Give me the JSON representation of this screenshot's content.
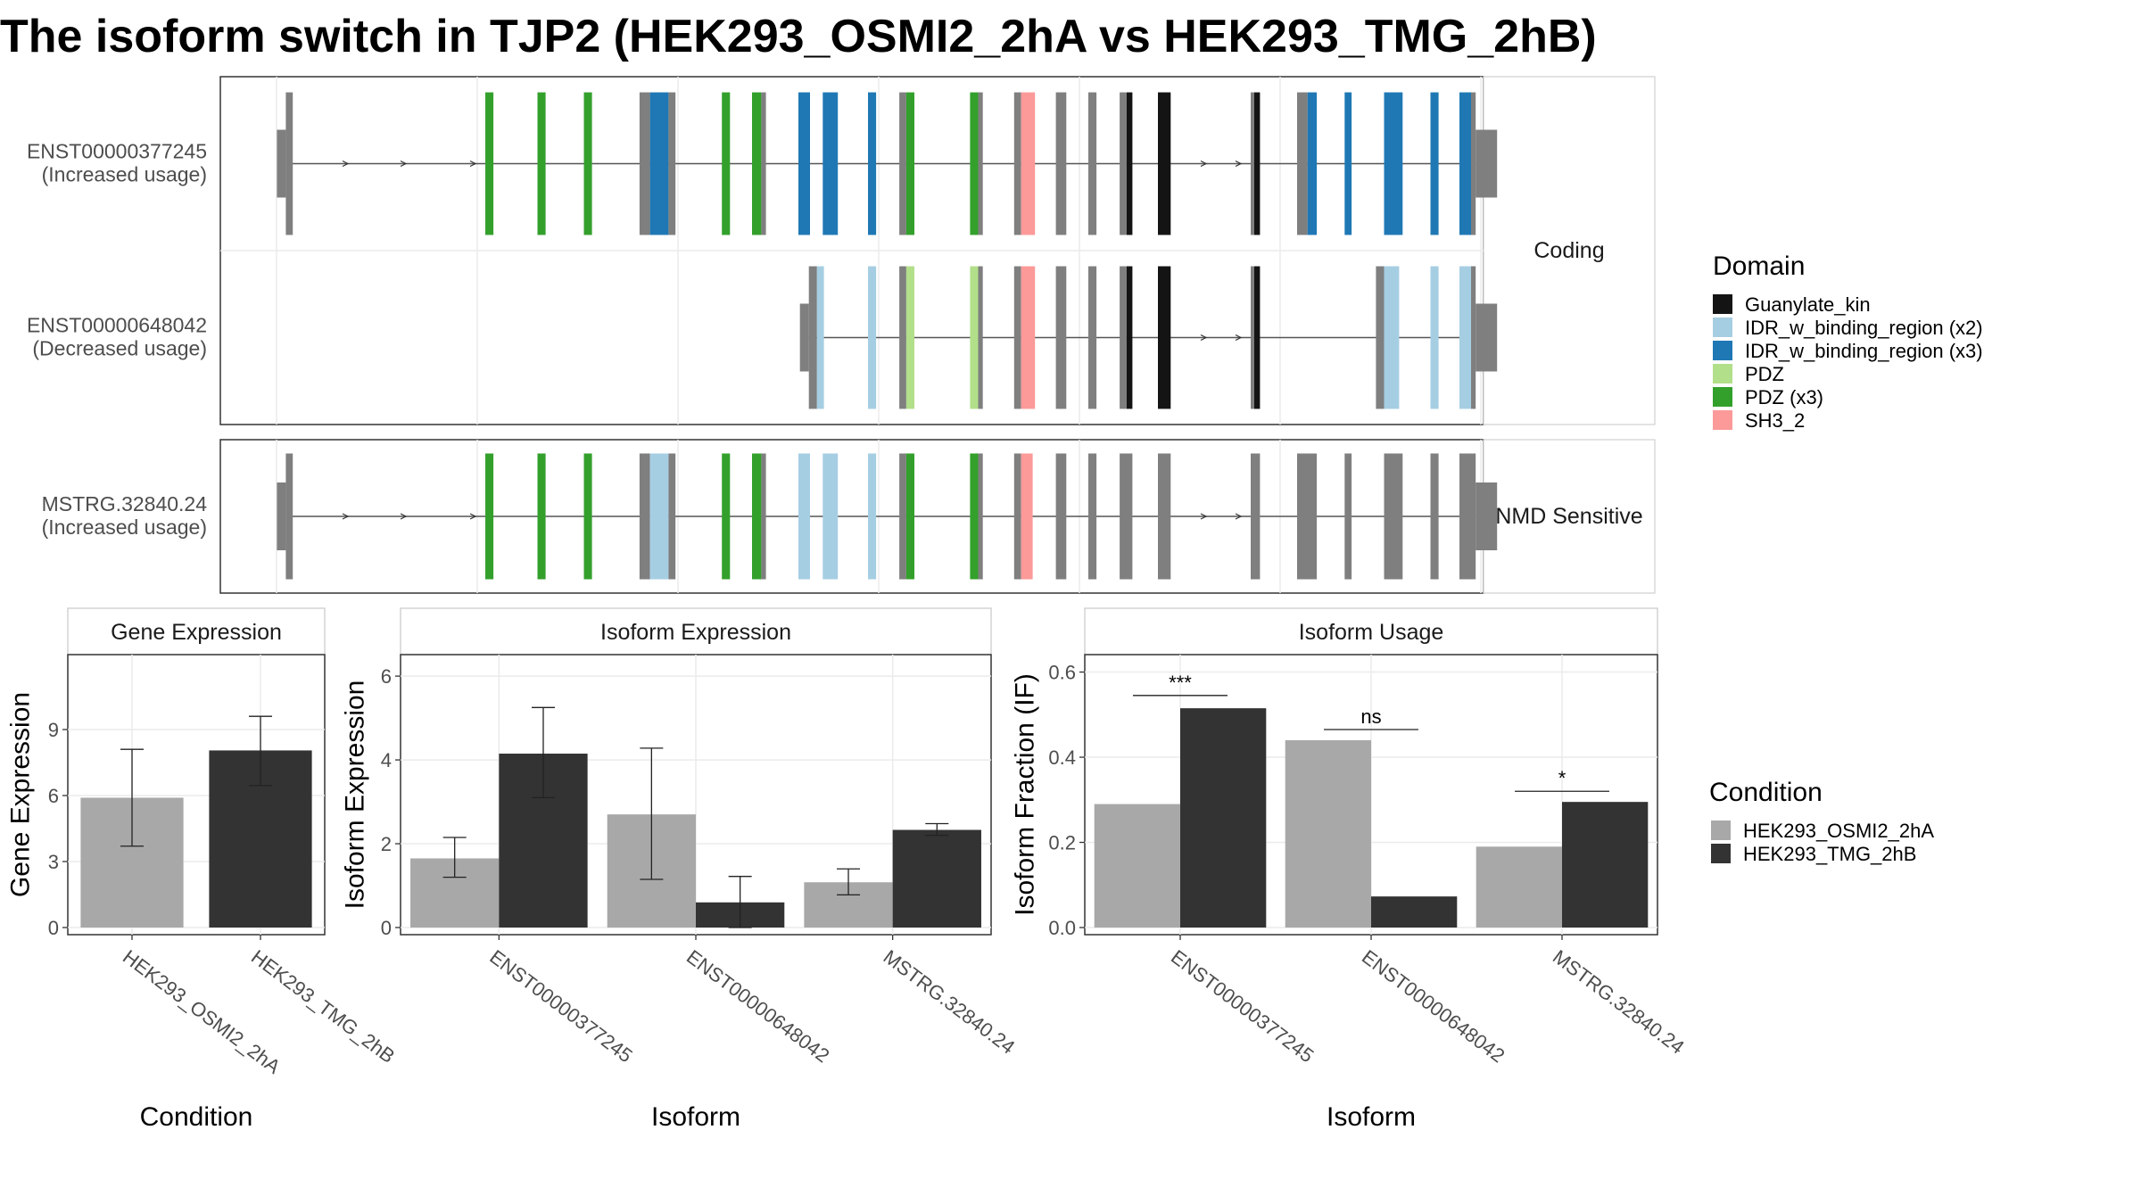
{
  "title": "The isoform switch in TJP2 (HEK293_OSMI2_2hA vs HEK293_TMG_2hB)",
  "colors": {
    "Guanylate_kin": "#141414",
    "IDR_w_binding_region (x2)": "#a6cee3",
    "IDR_w_binding_region (x3)": "#1f78b4",
    "PDZ": "#b2df8a",
    "PDZ (x3)": "#33a02c",
    "SH3_2": "#fb9a99",
    "none": "#7f7f7f",
    "cond_A": "#a8a8a8",
    "cond_B": "#333333"
  },
  "structure": {
    "panels": [
      {
        "strip": "Coding",
        "isoforms": [
          {
            "id": "ENST00000377245",
            "usage": "(Increased usage)",
            "utr_start": 0.0,
            "utr_end": 1.0,
            "exons": [
              [
                0.008,
                0.014,
                "none"
              ],
              [
                0.18,
                0.187,
                "PDZ (x3)"
              ],
              [
                0.225,
                0.232,
                "PDZ (x3)"
              ],
              [
                0.265,
                0.272,
                "PDZ (x3)"
              ],
              [
                0.313,
                0.322,
                "none"
              ],
              [
                0.322,
                0.338,
                "IDR_w_binding_region (x3)"
              ],
              [
                0.338,
                0.344,
                "none"
              ],
              [
                0.384,
                0.391,
                "PDZ (x3)"
              ],
              [
                0.41,
                0.418,
                "PDZ (x3)"
              ],
              [
                0.418,
                0.422,
                "none"
              ],
              [
                0.45,
                0.46,
                "IDR_w_binding_region (x3)"
              ],
              [
                0.471,
                0.484,
                "IDR_w_binding_region (x3)"
              ],
              [
                0.51,
                0.517,
                "IDR_w_binding_region (x3)"
              ],
              [
                0.537,
                0.543,
                "none"
              ],
              [
                0.543,
                0.55,
                "PDZ (x3)"
              ],
              [
                0.598,
                0.605,
                "PDZ (x3)"
              ],
              [
                0.605,
                0.609,
                "none"
              ],
              [
                0.636,
                0.642,
                "none"
              ],
              [
                0.642,
                0.654,
                "SH3_2"
              ],
              [
                0.672,
                0.681,
                "none"
              ],
              [
                0.7,
                0.707,
                "none"
              ],
              [
                0.727,
                0.733,
                "none"
              ],
              [
                0.733,
                0.738,
                "Guanylate_kin"
              ],
              [
                0.76,
                0.771,
                "Guanylate_kin"
              ],
              [
                0.84,
                0.843,
                "none"
              ],
              [
                0.843,
                0.848,
                "Guanylate_kin"
              ],
              [
                0.88,
                0.889,
                "none"
              ],
              [
                0.889,
                0.897,
                "IDR_w_binding_region (x3)"
              ],
              [
                0.921,
                0.927,
                "IDR_w_binding_region (x3)"
              ],
              [
                0.955,
                0.971,
                "IDR_w_binding_region (x3)"
              ],
              [
                0.995,
                1.002,
                "IDR_w_binding_region (x3)"
              ],
              [
                1.02,
                1.03,
                "IDR_w_binding_region (x3)"
              ],
              [
                1.03,
                1.034,
                "none"
              ]
            ]
          },
          {
            "id": "ENST00000648042",
            "usage": "(Decreased usage)",
            "utr_start": 0.44,
            "utr_end": 1.0,
            "exons": [
              [
                0.459,
                0.466,
                "none"
              ],
              [
                0.466,
                0.472,
                "IDR_w_binding_region (x2)"
              ],
              [
                0.51,
                0.517,
                "IDR_w_binding_region (x2)"
              ],
              [
                0.537,
                0.543,
                "none"
              ],
              [
                0.543,
                0.55,
                "PDZ"
              ],
              [
                0.598,
                0.605,
                "PDZ"
              ],
              [
                0.605,
                0.609,
                "none"
              ],
              [
                0.636,
                0.642,
                "none"
              ],
              [
                0.642,
                0.654,
                "SH3_2"
              ],
              [
                0.672,
                0.681,
                "none"
              ],
              [
                0.7,
                0.707,
                "none"
              ],
              [
                0.727,
                0.733,
                "none"
              ],
              [
                0.733,
                0.738,
                "Guanylate_kin"
              ],
              [
                0.76,
                0.771,
                "Guanylate_kin"
              ],
              [
                0.84,
                0.843,
                "none"
              ],
              [
                0.843,
                0.848,
                "Guanylate_kin"
              ],
              [
                0.948,
                0.955,
                "none"
              ],
              [
                0.955,
                0.968,
                "IDR_w_binding_region (x2)"
              ],
              [
                0.995,
                1.002,
                "IDR_w_binding_region (x2)"
              ],
              [
                1.02,
                1.03,
                "IDR_w_binding_region (x2)"
              ],
              [
                1.03,
                1.034,
                "none"
              ]
            ]
          }
        ]
      },
      {
        "strip": "NMD Sensitive",
        "isoforms": [
          {
            "id": "MSTRG.32840.24",
            "usage": "(Increased usage)",
            "utr_start": 0.0,
            "utr_end": 1.0,
            "exons": [
              [
                0.008,
                0.014,
                "none"
              ],
              [
                0.18,
                0.187,
                "PDZ (x3)"
              ],
              [
                0.225,
                0.232,
                "PDZ (x3)"
              ],
              [
                0.265,
                0.272,
                "PDZ (x3)"
              ],
              [
                0.313,
                0.322,
                "none"
              ],
              [
                0.322,
                0.338,
                "IDR_w_binding_region (x2)"
              ],
              [
                0.338,
                0.344,
                "none"
              ],
              [
                0.384,
                0.391,
                "PDZ (x3)"
              ],
              [
                0.41,
                0.418,
                "PDZ (x3)"
              ],
              [
                0.418,
                0.422,
                "none"
              ],
              [
                0.45,
                0.46,
                "IDR_w_binding_region (x2)"
              ],
              [
                0.471,
                0.484,
                "IDR_w_binding_region (x2)"
              ],
              [
                0.51,
                0.517,
                "IDR_w_binding_region (x2)"
              ],
              [
                0.537,
                0.543,
                "none"
              ],
              [
                0.543,
                0.55,
                "PDZ (x3)"
              ],
              [
                0.598,
                0.605,
                "PDZ (x3)"
              ],
              [
                0.605,
                0.609,
                "none"
              ],
              [
                0.636,
                0.642,
                "none"
              ],
              [
                0.642,
                0.652,
                "SH3_2"
              ],
              [
                0.672,
                0.681,
                "none"
              ],
              [
                0.7,
                0.707,
                "none"
              ],
              [
                0.727,
                0.738,
                "none"
              ],
              [
                0.76,
                0.771,
                "none"
              ],
              [
                0.84,
                0.848,
                "none"
              ],
              [
                0.88,
                0.897,
                "none"
              ],
              [
                0.921,
                0.927,
                "none"
              ],
              [
                0.955,
                0.971,
                "none"
              ],
              [
                0.995,
                1.002,
                "none"
              ],
              [
                1.02,
                1.034,
                "none"
              ]
            ]
          }
        ]
      }
    ]
  },
  "legends": {
    "domain_title": "Domain",
    "domain_items": [
      "Guanylate_kin",
      "IDR_w_binding_region (x2)",
      "IDR_w_binding_region (x3)",
      "PDZ",
      "PDZ (x3)",
      "SH3_2"
    ],
    "condition_title": "Condition",
    "condition_items": [
      "HEK293_OSMI2_2hA",
      "HEK293_TMG_2hB"
    ]
  },
  "chart_data": [
    {
      "type": "bar",
      "title": "Gene Expression",
      "xlabel": "Condition",
      "ylabel": "Gene Expression",
      "categories": [
        "HEK293_OSMI2_2hA",
        "HEK293_TMG_2hB"
      ],
      "values": [
        5.9,
        8.05
      ],
      "error_low": [
        3.7,
        6.45
      ],
      "error_high": [
        8.1,
        9.6
      ],
      "ylim": [
        0,
        12
      ],
      "yticks": [
        0,
        3,
        6,
        9
      ]
    },
    {
      "type": "bar",
      "title": "Isoform Expression",
      "xlabel": "Isoform",
      "ylabel": "Isoform Expression",
      "categories": [
        "ENST00000377245",
        "ENST00000648042",
        "MSTRG.32840.24"
      ],
      "series": [
        {
          "name": "HEK293_OSMI2_2hA",
          "values": [
            1.65,
            2.7,
            1.08
          ],
          "error_low": [
            1.2,
            1.15,
            0.78
          ],
          "error_high": [
            2.15,
            4.28,
            1.4
          ]
        },
        {
          "name": "HEK293_TMG_2hB",
          "values": [
            4.15,
            0.6,
            2.33
          ],
          "error_low": [
            3.1,
            0.0,
            2.2
          ],
          "error_high": [
            5.25,
            1.22,
            2.48
          ]
        }
      ],
      "ylim": [
        0,
        6.3
      ],
      "yticks": [
        0,
        2,
        4,
        6
      ]
    },
    {
      "type": "bar",
      "title": "Isoform Usage",
      "xlabel": "Isoform",
      "ylabel": "Isoform Fraction (IF)",
      "categories": [
        "ENST00000377245",
        "ENST00000648042",
        "MSTRG.32840.24"
      ],
      "series": [
        {
          "name": "HEK293_OSMI2_2hA",
          "values": [
            0.29,
            0.44,
            0.19
          ]
        },
        {
          "name": "HEK293_TMG_2hB",
          "values": [
            0.515,
            0.073,
            0.295
          ]
        }
      ],
      "significance": [
        {
          "label": "***",
          "y": 0.545
        },
        {
          "label": "ns",
          "y": 0.465
        },
        {
          "label": "*",
          "y": 0.32
        }
      ],
      "ylim": [
        0,
        0.62
      ],
      "yticks": [
        "0.0",
        "0.2",
        "0.4",
        "0.6"
      ]
    }
  ]
}
